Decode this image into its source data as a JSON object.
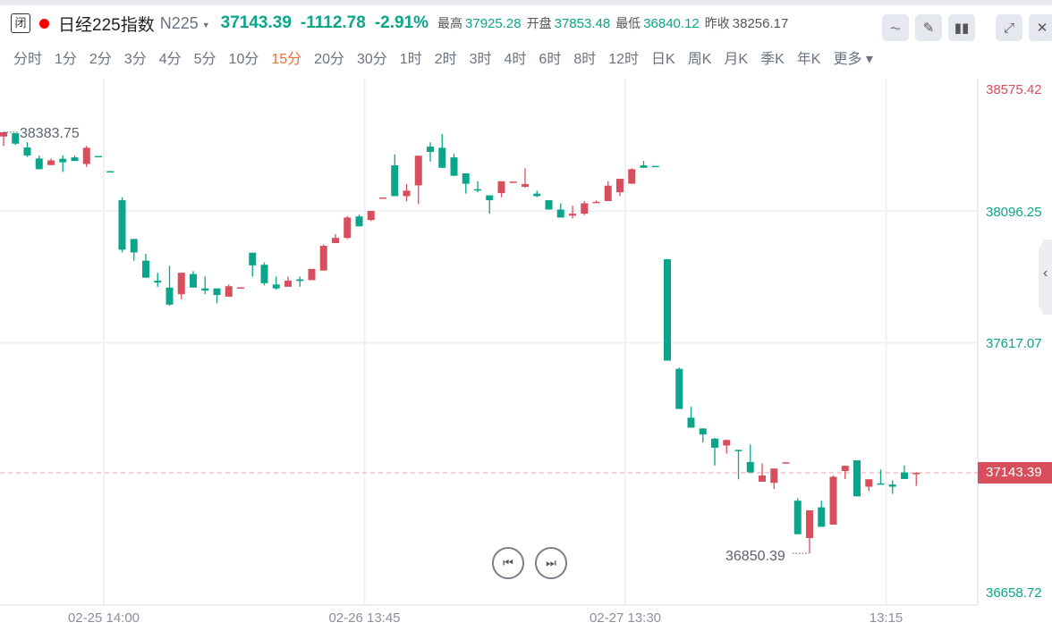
{
  "header": {
    "status_badge": "闭",
    "name": "日经225指数",
    "code": "N225",
    "price": "37143.39",
    "change": "-1112.78",
    "change_pct": "-2.91%",
    "high_label": "最高",
    "high": "37925.28",
    "open_label": "开盘",
    "open": "37853.48",
    "low_label": "最低",
    "low": "36840.12",
    "prev_close_label": "昨收",
    "prev_close": "38256.17"
  },
  "periods": [
    "分时",
    "1分",
    "2分",
    "3分",
    "4分",
    "5分",
    "10分",
    "15分",
    "20分",
    "30分",
    "1时",
    "2时",
    "3时",
    "4时",
    "6时",
    "8时",
    "12时",
    "日K",
    "周K",
    "月K",
    "季K",
    "年K",
    "更多"
  ],
  "active_period": "15分",
  "toolbar": {
    "icons": [
      "indicator-icon",
      "draw-pen-icon",
      "candlestick-type-icon",
      "fullscreen-icon",
      "close-icon"
    ]
  },
  "colors": {
    "up": "#d94e5c",
    "down": "#0aa58a",
    "grid": "#f0f1f4"
  },
  "chart_data": {
    "type": "candlestick",
    "ylim": [
      36658.72,
      38575.42
    ],
    "y_axis_labels": [
      "38575.42",
      "38096.25",
      "37617.07",
      "37143.39",
      "36658.72"
    ],
    "current_price": "37143.39",
    "max_marker": "38383.75",
    "min_marker": "36850.39",
    "x_labels": [
      {
        "index": 8,
        "label": "02-25 14:00"
      },
      {
        "index": 30,
        "label": "02-26 13:45"
      },
      {
        "index": 52,
        "label": "02-27 13:30"
      },
      {
        "index": 74,
        "label": "13:15"
      }
    ],
    "ohlc": [
      [
        38368,
        38383.75,
        38334,
        38383.75
      ],
      [
        38380,
        38381,
        38337,
        38342
      ],
      [
        38328,
        38347,
        38293,
        38299
      ],
      [
        38288,
        38299,
        38249,
        38249
      ],
      [
        38264,
        38288,
        38264,
        38281
      ],
      [
        38287,
        38299,
        38239,
        38274
      ],
      [
        38292,
        38299,
        38279,
        38279
      ],
      [
        38268,
        38334,
        38257,
        38327
      ],
      [
        38297,
        38297,
        38296,
        38296
      ],
      [
        38242,
        38242,
        38240,
        38240
      ],
      [
        38136,
        38147,
        37946,
        37956
      ],
      [
        37995,
        37995,
        37916,
        37946
      ],
      [
        37916,
        37941,
        37854,
        37854
      ],
      [
        37843,
        37872,
        37821,
        37836
      ],
      [
        37818,
        37897,
        37752,
        37756
      ],
      [
        37794,
        37872,
        37775,
        37872
      ],
      [
        37867,
        37878,
        37818,
        37818
      ],
      [
        37815,
        37858,
        37794,
        37807
      ],
      [
        37815,
        37815,
        37761,
        37791
      ],
      [
        37785,
        37829,
        37785,
        37823
      ],
      [
        37817,
        37819,
        37817,
        37819
      ],
      [
        37945,
        37945,
        37858,
        37899
      ],
      [
        37901,
        37910,
        37826,
        37834
      ],
      [
        37829,
        37858,
        37810,
        37815
      ],
      [
        37821,
        37858,
        37821,
        37843
      ],
      [
        37848,
        37858,
        37821,
        37842
      ],
      [
        37845,
        37886,
        37845,
        37886
      ],
      [
        37880,
        37975,
        37880,
        37970
      ],
      [
        37980,
        38013,
        37980,
        37999
      ],
      [
        37999,
        38078,
        37995,
        38073
      ],
      [
        38077,
        38084,
        38041,
        38041
      ],
      [
        38064,
        38097,
        38060,
        38097
      ],
      [
        38144,
        38146,
        38144,
        38146
      ],
      [
        38263,
        38303,
        38151,
        38151
      ],
      [
        38151,
        38195,
        38132,
        38171
      ],
      [
        38190,
        38298,
        38122,
        38298
      ],
      [
        38331,
        38347,
        38277,
        38312
      ],
      [
        38327,
        38377,
        38254,
        38254
      ],
      [
        38292,
        38306,
        38225,
        38225
      ],
      [
        38234,
        38234,
        38160,
        38196
      ],
      [
        38176,
        38205,
        38165,
        38171
      ],
      [
        38154,
        38154,
        38087,
        38136
      ],
      [
        38162,
        38205,
        38147,
        38205
      ],
      [
        38203,
        38204,
        38203,
        38204
      ],
      [
        38185,
        38252,
        38182,
        38195
      ],
      [
        38160,
        38171,
        38147,
        38151
      ],
      [
        38136,
        38136,
        38102,
        38102
      ],
      [
        38102,
        38125,
        38073,
        38073
      ],
      [
        38080,
        38116,
        38070,
        38087
      ],
      [
        38087,
        38133,
        38082,
        38125
      ],
      [
        38127,
        38135,
        38127,
        38130
      ],
      [
        38133,
        38205,
        38133,
        38189
      ],
      [
        38165,
        38214,
        38151,
        38214
      ],
      [
        38196,
        38252,
        38196,
        38249
      ],
      [
        38263,
        38279,
        38254,
        38254
      ],
      [
        38261,
        38261,
        38260,
        38260
      ],
      [
        37921,
        37921,
        37552,
        37552
      ],
      [
        37522,
        37527,
        37376,
        37376
      ],
      [
        37344,
        37384,
        37308,
        37308
      ],
      [
        37305,
        37305,
        37254,
        37283
      ],
      [
        37268,
        37270,
        37170,
        37235
      ],
      [
        37243,
        37265,
        37214,
        37263
      ],
      [
        37227,
        37227,
        37120,
        37226
      ],
      [
        37183,
        37246,
        37145,
        37145
      ],
      [
        37111,
        37178,
        37111,
        37134
      ],
      [
        37107,
        37159,
        37085,
        37159
      ],
      [
        37181,
        37182,
        37181,
        37182
      ],
      [
        37042,
        37051,
        36920,
        36920
      ],
      [
        36906,
        37007,
        36850.39,
        37007
      ],
      [
        37018,
        37042,
        36947,
        36947
      ],
      [
        36955,
        37134,
        36955,
        37129
      ],
      [
        37150,
        37169,
        37121,
        37169
      ],
      [
        37189,
        37189,
        37058,
        37058
      ],
      [
        37093,
        37120,
        37077,
        37120
      ],
      [
        37105,
        37156,
        37104,
        37104
      ],
      [
        37101,
        37116,
        37067,
        37093
      ],
      [
        37145,
        37170,
        37121,
        37121
      ],
      [
        37142,
        37146,
        37096,
        37143.39
      ]
    ]
  }
}
